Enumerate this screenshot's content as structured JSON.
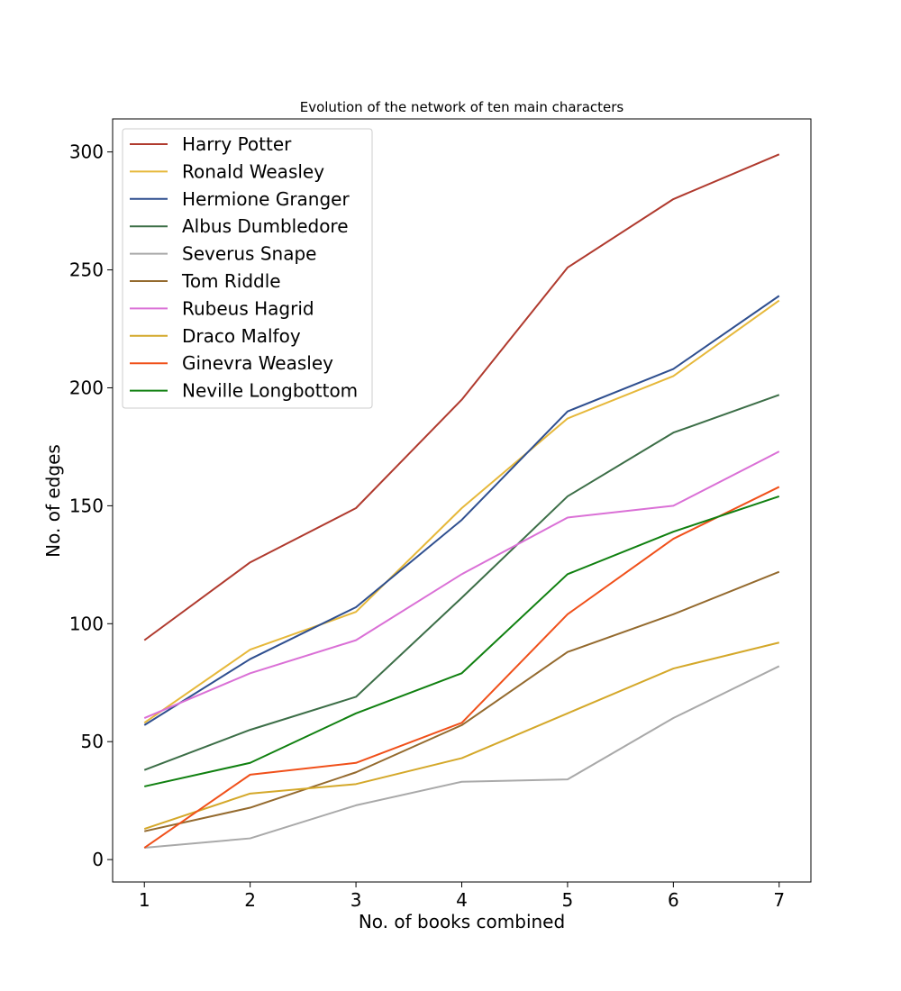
{
  "chart_data": {
    "type": "line",
    "title": "Evolution of the network of ten main characters",
    "xlabel": "No. of books combined",
    "ylabel": "No. of edges",
    "x": [
      1,
      2,
      3,
      4,
      5,
      6,
      7
    ],
    "xticks": [
      "1",
      "2",
      "3",
      "4",
      "5",
      "6",
      "7"
    ],
    "yticks": [
      "0",
      "50",
      "100",
      "150",
      "200",
      "250",
      "300"
    ],
    "xlim": [
      0.7,
      7.3
    ],
    "ylim": [
      -9.5,
      314
    ],
    "grid": false,
    "legend_position": "upper-left",
    "series": [
      {
        "name": "Harry Potter",
        "color": "#b03a2e",
        "values": [
          93,
          126,
          149,
          195,
          251,
          280,
          299
        ]
      },
      {
        "name": "Ronald Weasley",
        "color": "#e6b83a",
        "values": [
          58,
          89,
          105,
          149,
          187,
          205,
          237
        ]
      },
      {
        "name": "Hermione Granger",
        "color": "#2f4f8f",
        "values": [
          57,
          85,
          107,
          144,
          190,
          208,
          239
        ]
      },
      {
        "name": "Albus Dumbledore",
        "color": "#3c6e47",
        "values": [
          38,
          55,
          69,
          111,
          154,
          181,
          197
        ]
      },
      {
        "name": "Severus Snape",
        "color": "#a9a9a9",
        "values": [
          5,
          9,
          23,
          33,
          34,
          60,
          82
        ]
      },
      {
        "name": "Tom Riddle",
        "color": "#946a2e",
        "values": [
          12,
          22,
          37,
          57,
          88,
          104,
          122
        ]
      },
      {
        "name": "Rubeus Hagrid",
        "color": "#da70d6",
        "values": [
          60,
          79,
          93,
          121,
          145,
          150,
          173
        ]
      },
      {
        "name": "Draco Malfoy",
        "color": "#d4a82a",
        "values": [
          13,
          28,
          32,
          43,
          62,
          81,
          92
        ]
      },
      {
        "name": "Ginevra Weasley",
        "color": "#f0501a",
        "values": [
          5,
          36,
          41,
          58,
          104,
          136,
          158
        ]
      },
      {
        "name": "Neville Longbottom",
        "color": "#108010",
        "values": [
          31,
          41,
          62,
          79,
          121,
          139,
          154
        ]
      }
    ]
  }
}
